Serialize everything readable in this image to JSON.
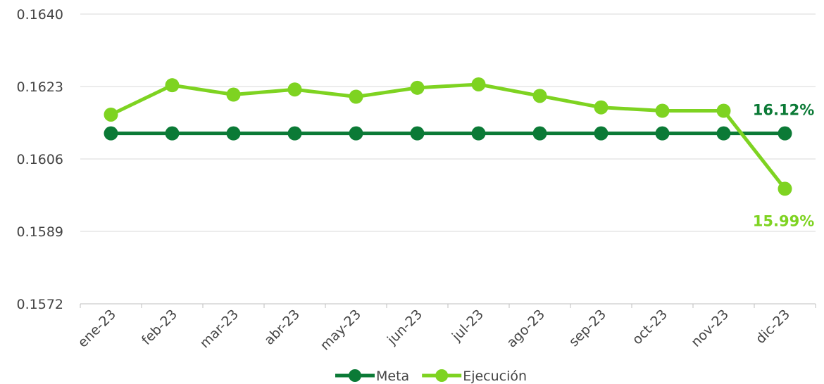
{
  "colors": {
    "meta": "#0b7a36",
    "ejecucion": "#7ed321",
    "grid": "#d9d9d9",
    "axis": "#bfbfbf"
  },
  "chart_data": {
    "type": "line",
    "title": "",
    "xlabel": "",
    "ylabel": "",
    "categories": [
      "ene-23",
      "feb-23",
      "mar-23",
      "abr-23",
      "may-23",
      "jun-23",
      "jul-23",
      "ago-23",
      "sep-23",
      "oct-23",
      "nov-23",
      "dic-23"
    ],
    "y_ticks": [
      "0.1640",
      "0.1623",
      "0.1606",
      "0.1589",
      "0.1572"
    ],
    "ylim": [
      0.1572,
      0.164
    ],
    "grid": true,
    "legend_position": "bottom",
    "series": [
      {
        "name": "Meta",
        "color": "#0b7a36",
        "values": [
          0.1612,
          0.1612,
          0.1612,
          0.1612,
          0.1612,
          0.1612,
          0.1612,
          0.1612,
          0.1612,
          0.1612,
          0.1612,
          0.1612
        ]
      },
      {
        "name": "Ejecución",
        "color": "#7ed321",
        "values": [
          0.16164,
          0.16233,
          0.16211,
          0.16223,
          0.16206,
          0.16227,
          0.16235,
          0.16208,
          0.16181,
          0.16173,
          0.16173,
          0.1599
        ]
      }
    ],
    "annotations": [
      {
        "text": "16.12%",
        "series": "Meta",
        "index": 11
      },
      {
        "text": "15.99%",
        "series": "Ejecución",
        "index": 11
      }
    ]
  }
}
